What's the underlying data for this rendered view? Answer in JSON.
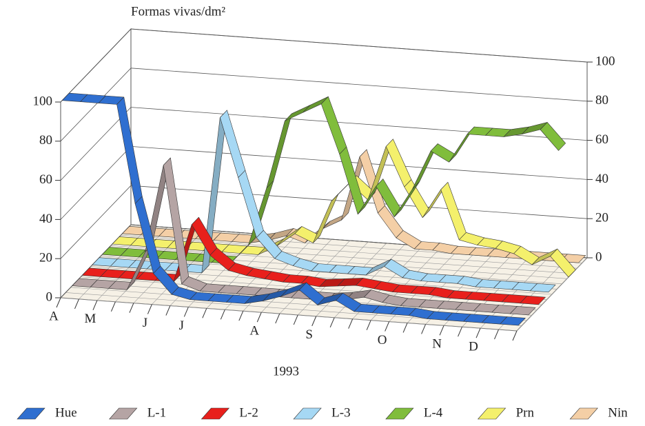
{
  "chart_data": {
    "type": "ribbon3d",
    "title": "Formas vivas/dm²",
    "xlabel": "1993",
    "categories": [
      "A",
      null,
      "M",
      null,
      null,
      "J",
      null,
      "J",
      null,
      null,
      null,
      "A",
      null,
      null,
      "S",
      null,
      null,
      null,
      "O",
      null,
      null,
      "N",
      null,
      "D",
      null,
      null
    ],
    "ylim": [
      0,
      100
    ],
    "yticks": [
      0,
      20,
      40,
      60,
      80,
      100
    ],
    "grid": true,
    "series": [
      {
        "name": "Hue",
        "color": "#2f6fd0",
        "values": [
          100,
          100,
          100,
          100,
          50,
          15,
          5,
          3,
          3,
          3,
          3,
          5,
          8,
          12,
          5,
          8,
          3,
          3,
          3,
          3,
          2,
          2,
          2,
          2,
          2,
          2
        ]
      },
      {
        "name": "L-1",
        "color": "#b5a4a4",
        "values": [
          0,
          0,
          0,
          0,
          20,
          65,
          5,
          2,
          2,
          2,
          2,
          2,
          2,
          2,
          2,
          3,
          5,
          3,
          2,
          2,
          2,
          2,
          2,
          2,
          2,
          2
        ]
      },
      {
        "name": "L-2",
        "color": "#e8201c",
        "values": [
          0,
          0,
          0,
          0,
          0,
          0,
          30,
          15,
          8,
          6,
          5,
          4,
          4,
          3,
          4,
          5,
          4,
          3,
          3,
          3,
          2,
          2,
          2,
          2,
          2,
          2
        ]
      },
      {
        "name": "L-3",
        "color": "#a6d8f4",
        "values": [
          0,
          0,
          0,
          0,
          0,
          0,
          0,
          80,
          50,
          20,
          10,
          7,
          5,
          5,
          5,
          5,
          10,
          5,
          4,
          4,
          4,
          3,
          3,
          3,
          3,
          3
        ]
      },
      {
        "name": "L-4",
        "color": "#80bd3c",
        "values": [
          0,
          0,
          0,
          0,
          0,
          0,
          0,
          0,
          10,
          40,
          75,
          80,
          85,
          60,
          30,
          45,
          30,
          45,
          65,
          60,
          75,
          75,
          75,
          77,
          80,
          70
        ]
      },
      {
        "name": "Prn",
        "color": "#f4f06c",
        "values": [
          0,
          0,
          0,
          0,
          0,
          0,
          0,
          0,
          0,
          5,
          12,
          8,
          30,
          40,
          32,
          60,
          40,
          25,
          40,
          15,
          13,
          12,
          10,
          5,
          10,
          0
        ]
      },
      {
        "name": "Nin",
        "color": "#f4cfa6",
        "values": [
          0,
          0,
          0,
          0,
          0,
          0,
          0,
          0,
          2,
          5,
          2,
          10,
          15,
          48,
          20,
          8,
          3,
          3,
          2,
          2,
          2,
          2,
          2,
          2,
          2,
          2
        ]
      }
    ]
  }
}
